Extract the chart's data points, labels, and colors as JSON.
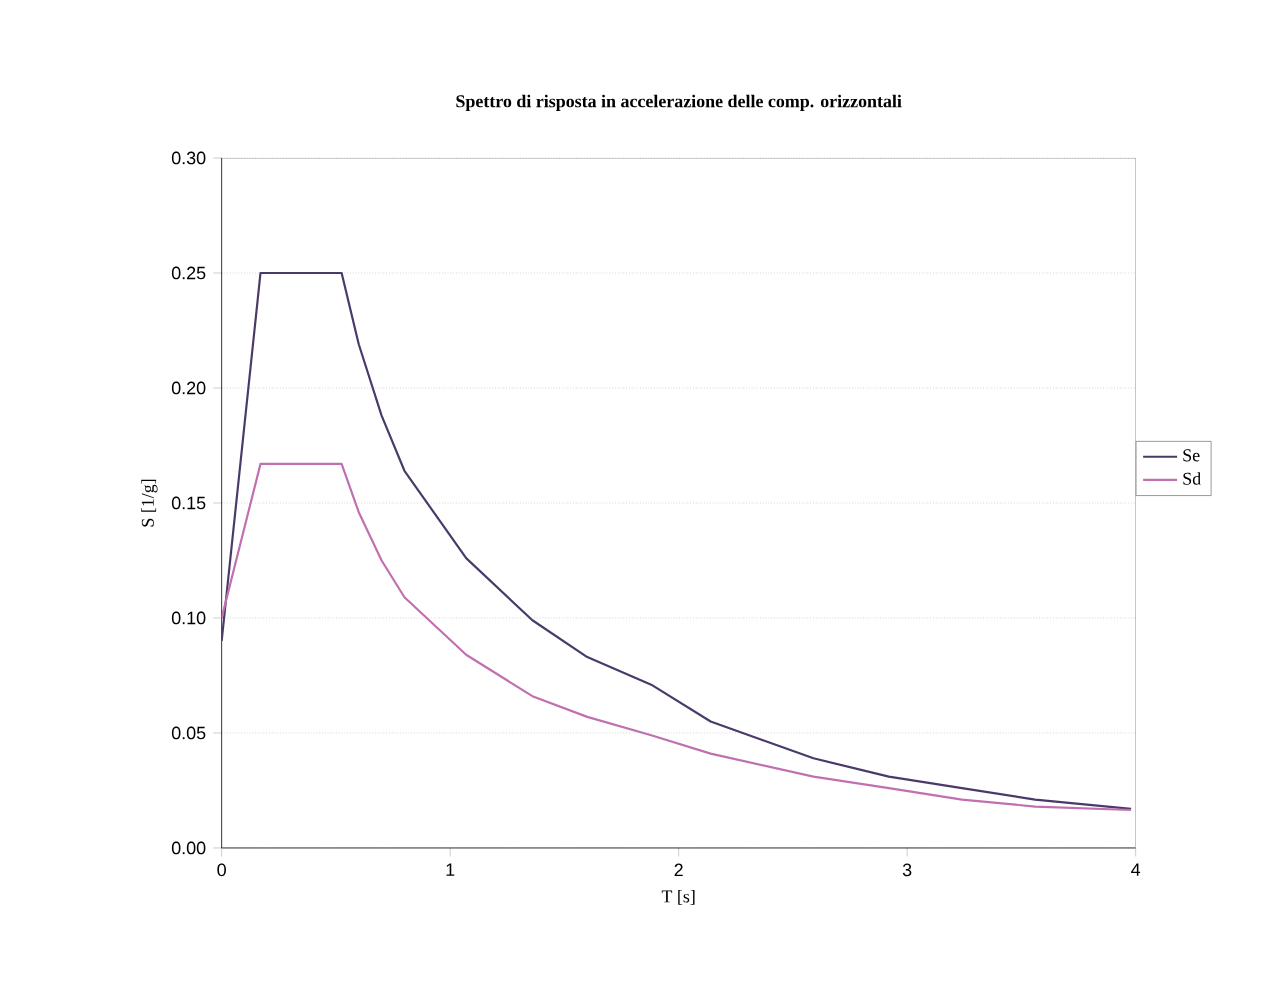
{
  "chart_data": {
    "type": "line",
    "title": "Spettro di risposta in accelerazione delle comp. orizzontali",
    "xlabel": "T [s]",
    "ylabel": "S [1/g]",
    "xlim": [
      0,
      4
    ],
    "xticks": [
      0,
      1,
      2,
      3,
      4
    ],
    "ylim": [
      0,
      0.3
    ],
    "yticks": [
      {
        "value": 0,
        "label": "0.00"
      },
      {
        "value": 0.05,
        "label": "0.05"
      },
      {
        "value": 0.1,
        "label": "0.10"
      },
      {
        "value": 0.15,
        "label": "0.15"
      },
      {
        "value": 0.2,
        "label": "0.20"
      },
      {
        "value": 0.25,
        "label": "0.25"
      },
      {
        "value": 0.3,
        "label": "0.30"
      }
    ],
    "grid": "y",
    "legend": "right",
    "marker": "none",
    "line_style": "solid",
    "series": [
      {
        "name": "Se",
        "color": "#4a3a6a",
        "x": [
          0,
          0.17,
          0.525,
          0.6,
          0.7,
          0.8,
          1.07,
          1.36,
          1.6,
          1.88,
          2.14,
          2.59,
          2.92,
          3.24,
          3.56,
          3.98
        ],
        "values": [
          0.09,
          0.25,
          0.25,
          0.219,
          0.188,
          0.164,
          0.126,
          0.099,
          0.083,
          0.071,
          0.055,
          0.039,
          0.031,
          0.026,
          0.021,
          0.017
        ]
      },
      {
        "name": "Sd",
        "color": "#c070b0",
        "x": [
          0,
          0.17,
          0.525,
          0.6,
          0.7,
          0.8,
          1.07,
          1.36,
          1.6,
          1.88,
          2.14,
          2.59,
          2.92,
          3.24,
          3.56,
          3.98
        ],
        "values": [
          0.1,
          0.167,
          0.167,
          0.146,
          0.125,
          0.109,
          0.084,
          0.066,
          0.057,
          0.049,
          0.041,
          0.031,
          0.026,
          0.021,
          0.018,
          0.0165
        ]
      }
    ]
  }
}
